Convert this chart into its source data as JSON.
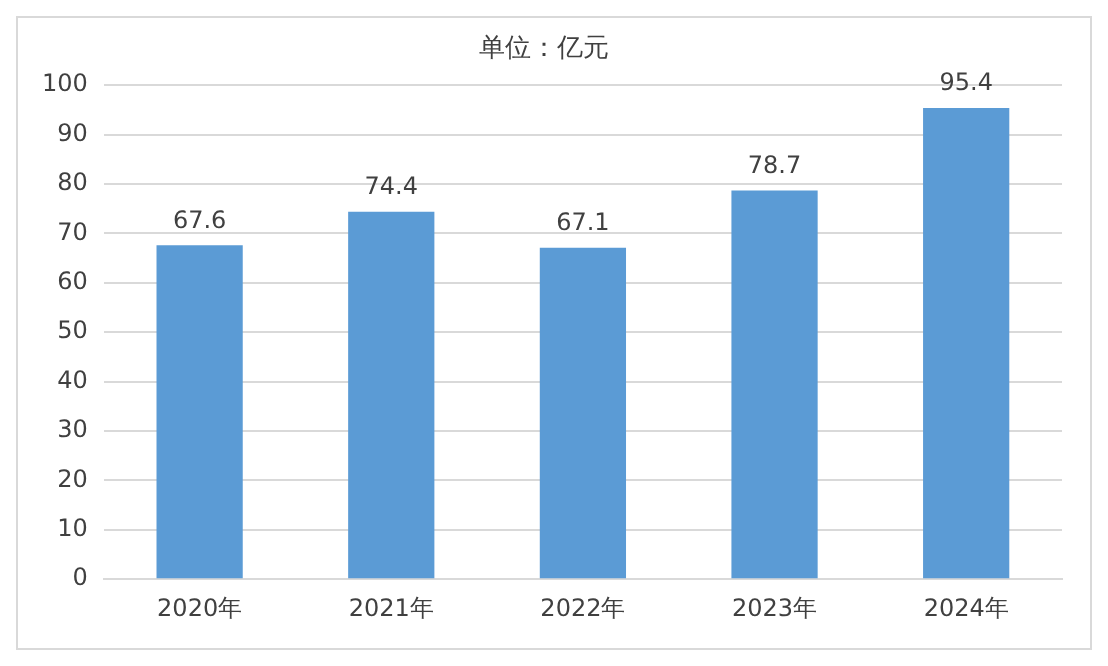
{
  "chart_data": {
    "type": "bar",
    "title": "单位：亿元",
    "categories": [
      "2020年",
      "2021年",
      "2022年",
      "2023年",
      "2024年"
    ],
    "values": [
      67.6,
      74.4,
      67.1,
      78.7,
      95.4
    ],
    "color": "#5b9bd5",
    "ylim": [
      0,
      100
    ],
    "yticks": [
      0,
      10,
      20,
      30,
      40,
      50,
      60,
      70,
      80,
      90,
      100
    ],
    "grid": "y",
    "data_labels": true,
    "legend": false
  }
}
